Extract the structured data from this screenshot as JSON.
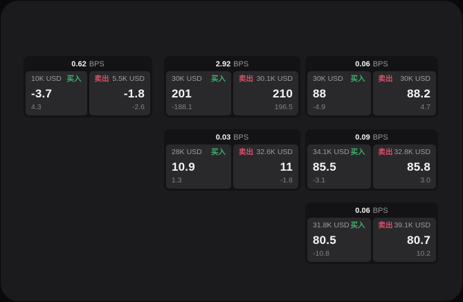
{
  "labels": {
    "bps_unit": "BPS",
    "buy": "买入",
    "sell": "卖出"
  },
  "colors": {
    "buy_green": "#3fae6e",
    "sell_red": "#d6516a",
    "surface": "#1b1b1d",
    "card": "#131315",
    "panel": "#29292b"
  },
  "cards": [
    {
      "bps": "0.62",
      "buy": {
        "amount": "10K USD",
        "price": "-3.7",
        "delta": "4.3"
      },
      "sell": {
        "amount": "5.5K USD",
        "price": "-1.8",
        "delta": "-2.6"
      }
    },
    {
      "bps": "2.92",
      "buy": {
        "amount": "30K USD",
        "price": "201",
        "delta": "-188.1"
      },
      "sell": {
        "amount": "30.1K USD",
        "price": "210",
        "delta": "196.5"
      }
    },
    {
      "bps": "0.06",
      "buy": {
        "amount": "30K USD",
        "price": "88",
        "delta": "-4.9"
      },
      "sell": {
        "amount": "30K USD",
        "price": "88.2",
        "delta": "4.7"
      }
    },
    {
      "bps": "0.03",
      "buy": {
        "amount": "28K USD",
        "price": "10.9",
        "delta": "1.3"
      },
      "sell": {
        "amount": "32.6K USD",
        "price": "11",
        "delta": "-1.8"
      }
    },
    {
      "bps": "0.09",
      "buy": {
        "amount": "34.1K USD",
        "price": "85.5",
        "delta": "-3.1"
      },
      "sell": {
        "amount": "32.8K USD",
        "price": "85.8",
        "delta": "3.0"
      }
    },
    {
      "bps": "0.06",
      "buy": {
        "amount": "31.8K USD",
        "price": "80.5",
        "delta": "-10.8"
      },
      "sell": {
        "amount": "39.1K USD",
        "price": "80.7",
        "delta": "10.2"
      }
    }
  ]
}
